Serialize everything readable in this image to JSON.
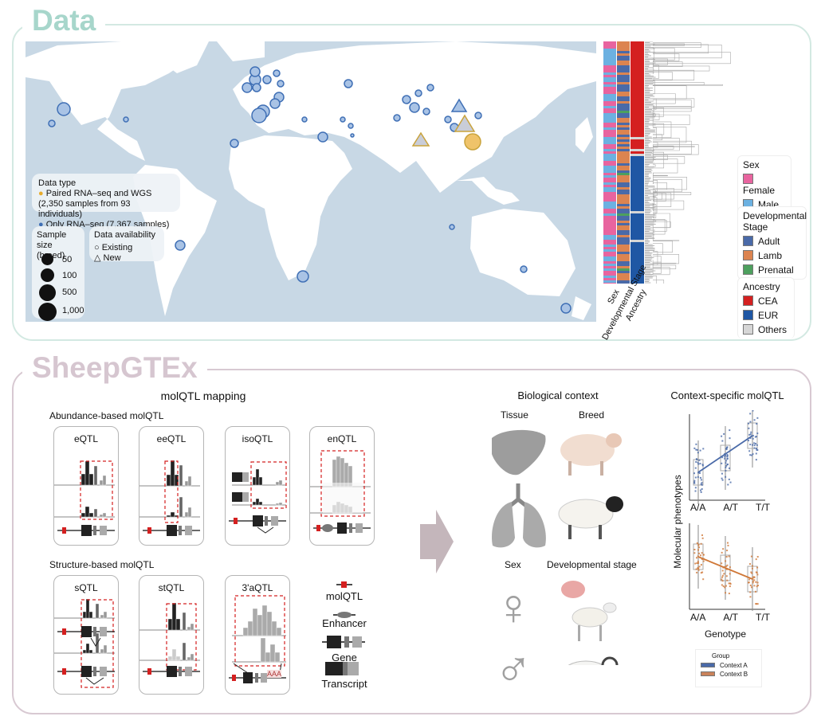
{
  "data_section": {
    "title": "Data",
    "map_legend": {
      "data_type_title": "Data type",
      "paired": "Paired RNA–seq and WGS",
      "paired_detail": "(2,350 samples from 93 individuals)",
      "only_rna": "Only RNA–seq (7,367 samples)",
      "sample_size_title": "Sample size",
      "sample_size_sub": "(breed)",
      "sizes": [
        "50",
        "100",
        "500",
        "1,000"
      ],
      "availability_title": "Data availability",
      "existing": "Existing",
      "new": "New"
    },
    "heatmap_columns": [
      "Sex",
      "Developmental Stage",
      "Ancestry"
    ],
    "legends": {
      "sex": {
        "title": "Sex",
        "items": [
          {
            "label": "Female",
            "color": "#e8649f"
          },
          {
            "label": "Male",
            "color": "#6cb1e1"
          }
        ]
      },
      "dev": {
        "title": "Developmental Stage",
        "items": [
          {
            "label": "Adult",
            "color": "#4a6aa8"
          },
          {
            "label": "Lamb",
            "color": "#dc8450"
          },
          {
            "label": "Prenatal",
            "color": "#4da05e"
          }
        ]
      },
      "ancestry": {
        "title": "Ancestry",
        "items": [
          {
            "label": "CEA",
            "color": "#d42020"
          },
          {
            "label": "EUR",
            "color": "#1f57a4"
          },
          {
            "label": "Others",
            "color": "#d6d6d6"
          }
        ]
      }
    },
    "colors": {
      "paired": "#e8ac2c",
      "only_rna": "#3f6fb5",
      "ocean": "#c8d8e5"
    }
  },
  "gtex_section": {
    "title": "SheepGTEx",
    "mapping_title": "molQTL mapping",
    "abundance_title": "Abundance-based molQTL",
    "structure_title": "Structure-based molQTL",
    "panels": {
      "eqtl": "eQTL",
      "eeqtl": "eeQTL",
      "isoqtl": "isoQTL",
      "enqtl": "enQTL",
      "sqtl": "sQTL",
      "stqtl": "stQTL",
      "aqtl": "3'aQTL"
    },
    "aaa": "AAA",
    "key": {
      "molqtl": "molQTL",
      "enhancer": "Enhancer",
      "gene": "Gene",
      "transcript": "Transcript"
    },
    "bio_context": {
      "title": "Biological context",
      "tissue": "Tissue",
      "breed": "Breed",
      "sex": "Sex",
      "dev_stage": "Developmental stage",
      "female_symbol": "♀",
      "male_symbol": "♂"
    },
    "context_specific": {
      "title": "Context-specific molQTL",
      "ylabel": "Molecular phenotypes",
      "xlabel": "Genotype",
      "ticks": [
        "A/A",
        "A/T",
        "T/T"
      ],
      "legend_title": "Group",
      "groups": [
        {
          "label": "Context A",
          "color": "#4a6aa8"
        },
        {
          "label": "Context B",
          "color": "#d07838"
        }
      ]
    }
  }
}
